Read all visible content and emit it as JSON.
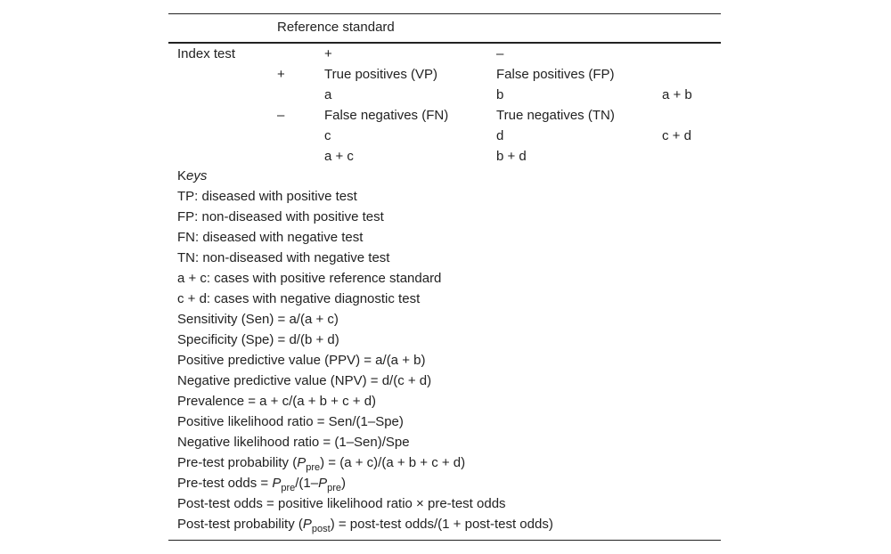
{
  "table": {
    "header": "Reference standard",
    "rows": [
      {
        "index": "Index test",
        "pos": "+",
        "neg": "–"
      },
      {
        "sign": "+",
        "pos": "True positives (VP)",
        "neg": "False positives (FP)"
      },
      {
        "pos": "a",
        "neg": "b",
        "total": "a + b"
      },
      {
        "sign": "–",
        "pos": "False negatives (FN)",
        "neg": "True negatives (TN)"
      },
      {
        "pos": "c",
        "neg": "d",
        "total": "c + d"
      },
      {
        "pos": "a + c",
        "neg": "b + d"
      }
    ],
    "keys_heading": [
      "K",
      "eys"
    ],
    "keys": [
      "TP: diseased with positive test",
      "FP: non-diseased with positive test",
      "FN: diseased with negative test",
      "TN: non-diseased with negative test",
      "a + c: cases with positive reference standard",
      "c + d: cases with negative diagnostic test",
      "Sensitivity (Sen) = a/(a + c)",
      "Specificity (Spe) = d/(b + d)",
      "Positive predictive value (PPV) = a/(a + b)",
      "Negative predictive value (NPV) = d/(c + d)",
      "Prevalence = a + c/(a + b + c + d)",
      "Positive likelihood ratio = Sen/(1–Spe)",
      "Negative likelihood ratio = (1–Sen)/Spe",
      [
        "Pre-test probability (",
        "P",
        "pre",
        ") = (a + c)/(a + b + c + d)"
      ],
      [
        "Pre-test odds = ",
        "P",
        "pre",
        "/(1–",
        "P",
        "pre",
        ")"
      ],
      "Post-test odds = positive likelihood ratio × pre-test odds",
      [
        "Post-test probability (",
        "P",
        "post",
        ") = post-test odds/(1 + post-test odds)"
      ]
    ]
  }
}
